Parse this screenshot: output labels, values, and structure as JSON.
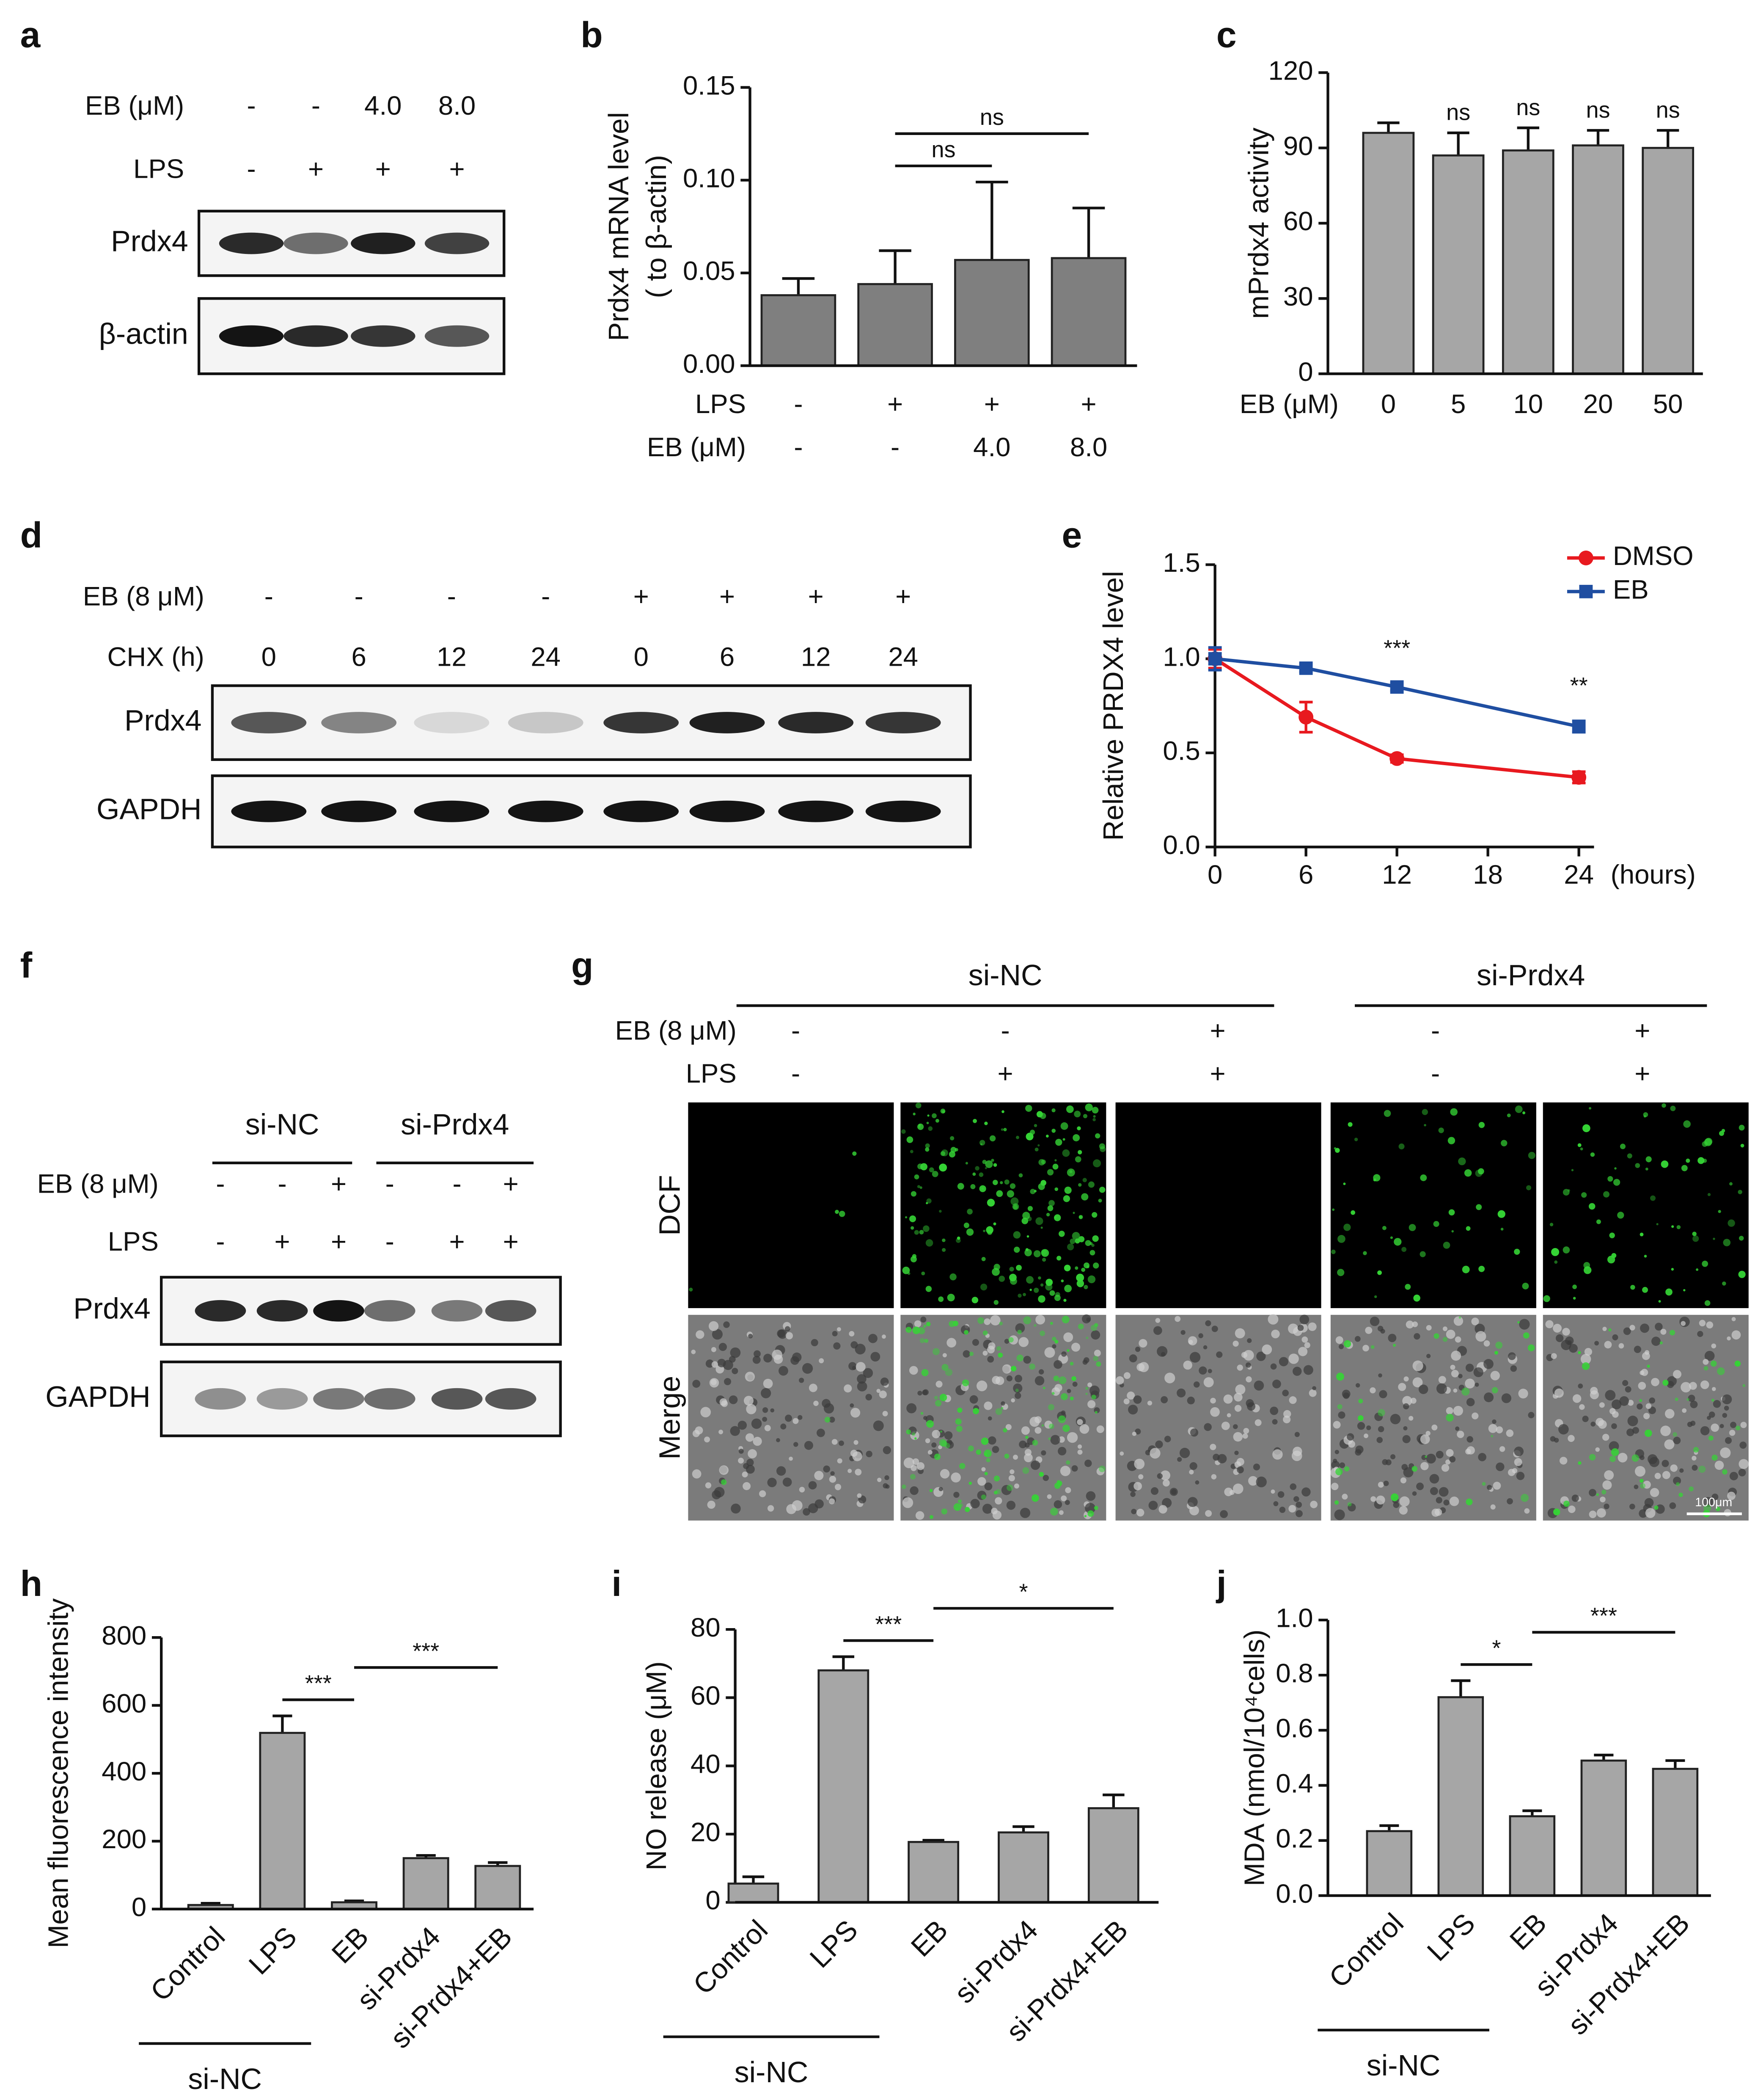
{
  "chart_data": [
    {
      "label": "b",
      "type": "bar",
      "ylabel": [
        "Prdx4 mRNA level",
        "( to β-actin)"
      ],
      "ylim": [
        0,
        0.15
      ],
      "yticks": [
        {
          "value": 0,
          "label": "0.00"
        },
        0.05,
        {
          "value": 0.1,
          "label": "0.10"
        },
        0.15
      ],
      "values": [
        0.038,
        0.044,
        0.057,
        0.058
      ],
      "errors": [
        0.009,
        0.018,
        0.042,
        0.027
      ],
      "color": "#7f7f7f",
      "conditions": [
        {
          "name": "LPS",
          "values": [
            "-",
            "+",
            "+",
            "+"
          ]
        },
        {
          "name": "EB (μM)",
          "values": [
            "-",
            "-",
            "4.0",
            "8.0"
          ]
        }
      ],
      "annotations": [
        {
          "text": "ns",
          "from": 1,
          "to": 2
        },
        {
          "text": "ns",
          "from": 1,
          "to": 3
        }
      ]
    },
    {
      "label": "c",
      "type": "bar",
      "ylabel": "mPrdx4 activity",
      "xlabel": "EB (μM)",
      "categories": [
        "0",
        "5",
        "10",
        "20",
        "50"
      ],
      "ylim": [
        0,
        120
      ],
      "yticks": [
        0,
        30,
        60,
        90,
        120
      ],
      "values": [
        96,
        87,
        89,
        91,
        90
      ],
      "errors": [
        4,
        9,
        9,
        6,
        7
      ],
      "color": "#a6a6a6",
      "annotations": [
        {
          "text": "ns",
          "at": 1
        },
        {
          "text": "ns",
          "at": 2
        },
        {
          "text": "ns",
          "at": 3
        },
        {
          "text": "ns",
          "at": 4
        }
      ]
    },
    {
      "label": "e",
      "type": "line",
      "ylabel": "Relative PRDX4 level",
      "xlabel": "(hours)",
      "x": [
        0,
        6,
        12,
        24
      ],
      "xlim": [
        0,
        25
      ],
      "xticks": [
        0,
        6,
        12,
        18,
        24
      ],
      "ylim": [
        0,
        1.5
      ],
      "yticks": [
        {
          "value": 0,
          "label": "0.0"
        },
        0.5,
        {
          "value": 1,
          "label": "1.0"
        },
        1.5
      ],
      "legend": "upper right",
      "series": [
        {
          "name": "DMSO",
          "color": "#e8191f",
          "marker": "circle",
          "values": [
            1.0,
            0.69,
            0.47,
            0.37
          ],
          "errors": [
            0.05,
            0.08,
            0.02,
            0.03
          ]
        },
        {
          "name": "EB",
          "color": "#1f4ea1",
          "marker": "square",
          "values": [
            1.0,
            0.95,
            0.85,
            0.64
          ],
          "errors": [
            0.06,
            0.02,
            0.02,
            0.03
          ]
        }
      ],
      "annotations": [
        {
          "text": "***",
          "x": 12
        },
        {
          "text": "**",
          "x": 24
        }
      ]
    },
    {
      "label": "h",
      "type": "bar",
      "ylabel": "Mean fluorescence intensity",
      "categories": [
        "Control",
        "LPS",
        "EB",
        "si-Prdx4",
        "si-Prdx4+EB"
      ],
      "ylim": [
        0,
        800
      ],
      "yticks": [
        0,
        200,
        400,
        600,
        800
      ],
      "values": [
        12,
        519,
        20,
        150,
        127
      ],
      "errors": [
        5,
        50,
        4,
        8,
        10
      ],
      "color": "#a6a6a6",
      "annotations": [
        {
          "text": "***",
          "from": 1,
          "to": 2
        },
        {
          "text": "***",
          "from": 2,
          "to": 4
        }
      ],
      "group": {
        "text": "si-NC",
        "from": 0,
        "to": 2
      }
    },
    {
      "label": "i",
      "type": "bar",
      "ylabel": "NO release (μM)",
      "categories": [
        "Control",
        "LPS",
        "EB",
        "si-Prdx4",
        "si-Prdx4+EB"
      ],
      "ylim": [
        0,
        80
      ],
      "yticks": [
        0,
        20,
        40,
        60,
        80
      ],
      "values": [
        5.5,
        68,
        17.7,
        20.5,
        27.6
      ],
      "errors": [
        2,
        4,
        0.5,
        1.7,
        3.9
      ],
      "color": "#a6a6a6",
      "annotations": [
        {
          "text": "***",
          "from": 1,
          "to": 2
        },
        {
          "text": "*",
          "from": 2,
          "to": 4
        }
      ],
      "group": {
        "text": "si-NC",
        "from": 0,
        "to": 2
      }
    },
    {
      "label": "j",
      "type": "bar",
      "ylabel": "MDA (nmol/10⁴cells)",
      "categories": [
        "Control",
        "LPS",
        "EB",
        "si-Prdx4",
        "si-Prdx4+EB"
      ],
      "ylim": [
        0,
        1
      ],
      "yticks": [
        {
          "value": 0,
          "label": "0.0"
        },
        0.2,
        0.4,
        0.6,
        0.8,
        {
          "value": 1,
          "label": "1.0"
        }
      ],
      "values": [
        0.234,
        0.72,
        0.288,
        0.49,
        0.46
      ],
      "errors": [
        0.02,
        0.06,
        0.02,
        0.02,
        0.03
      ],
      "color": "#a6a6a6",
      "annotations": [
        {
          "text": "*",
          "from": 1,
          "to": 2
        },
        {
          "text": "***",
          "from": 2,
          "to": 4
        }
      ],
      "group": {
        "text": "si-NC",
        "from": 0,
        "to": 2
      }
    }
  ],
  "blots": [
    {
      "label": "a",
      "conditions": [
        {
          "name": "EB (μM)",
          "values": [
            "-",
            "-",
            "4.0",
            "8.0"
          ]
        },
        {
          "name": "LPS",
          "values": [
            "-",
            "+",
            "+",
            "+"
          ]
        }
      ],
      "bands": [
        "Prdx4",
        "β-actin"
      ]
    },
    {
      "label": "d",
      "conditions": [
        {
          "name": "EB (8 μM)",
          "values": [
            "-",
            "-",
            "-",
            "-",
            "+",
            "+",
            "+",
            "+"
          ]
        },
        {
          "name": "CHX (h)",
          "values": [
            "0",
            "6",
            "12",
            "24",
            "0",
            "6",
            "12",
            "24"
          ]
        }
      ],
      "bands": [
        "Prdx4",
        "GAPDH"
      ]
    },
    {
      "label": "f",
      "groups": [
        "si-NC",
        "si-Prdx4"
      ],
      "conditions": [
        {
          "name": "EB (8 μM)",
          "values": [
            "-",
            "-",
            "+",
            "-",
            "-",
            "+"
          ]
        },
        {
          "name": "LPS",
          "values": [
            "-",
            "+",
            "+",
            "-",
            "+",
            "+"
          ]
        }
      ],
      "bands": [
        "Prdx4",
        "GAPDH"
      ]
    }
  ],
  "imaging": {
    "label": "g",
    "groups": [
      "si-NC",
      "si-Prdx4"
    ],
    "conditions": [
      {
        "name": "EB (8 μM)",
        "values": [
          "-",
          "-",
          "+",
          "-",
          "+"
        ]
      },
      {
        "name": "LPS",
        "values": [
          "-",
          "+",
          "+",
          "-",
          "+"
        ]
      }
    ],
    "rows": [
      "DCF",
      "Merge"
    ],
    "scale_bar": "100μm"
  }
}
